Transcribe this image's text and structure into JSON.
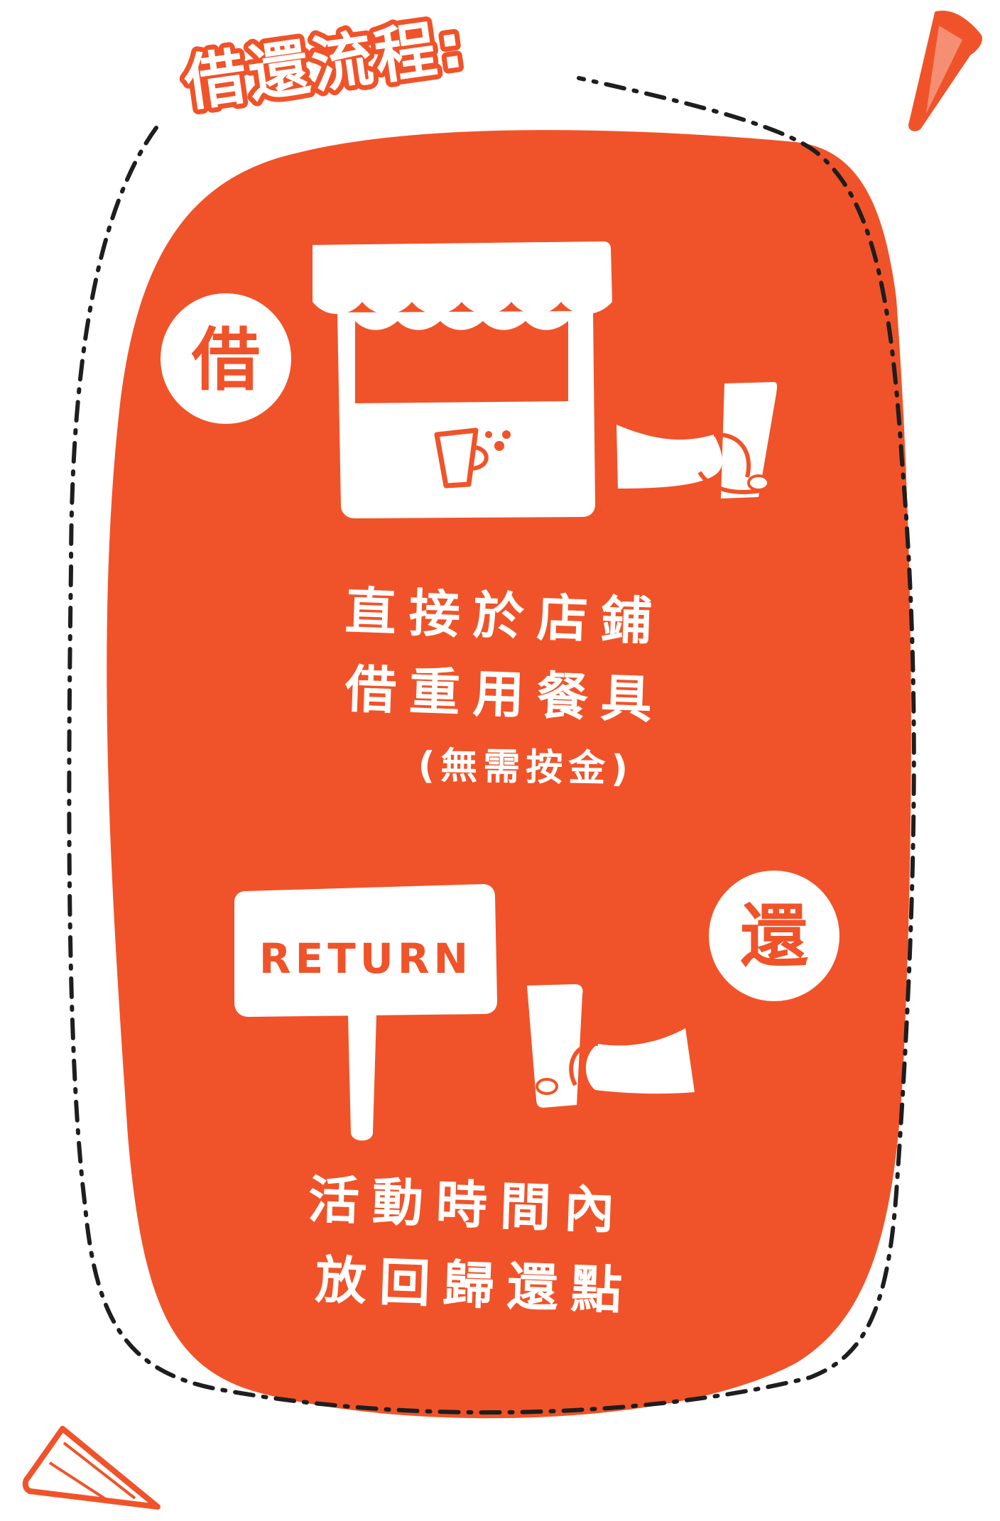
{
  "title": "借還流程:",
  "colors": {
    "accent": "#F05329",
    "ink": "#1E1E1E",
    "paper": "#FFFFFF"
  },
  "borrow": {
    "badge": "借",
    "line1": "直接於店鋪",
    "line2": "借重用餐具",
    "note": "(無需按金)",
    "icons": [
      "stall-icon",
      "cup-icon",
      "hand-holding-cup-icon"
    ]
  },
  "return": {
    "badge": "還",
    "sign_text": "RETURN",
    "line1": "活動時間內",
    "line2": "放回歸還點",
    "icons": [
      "return-sign-icon",
      "hand-holding-cup-icon"
    ]
  }
}
